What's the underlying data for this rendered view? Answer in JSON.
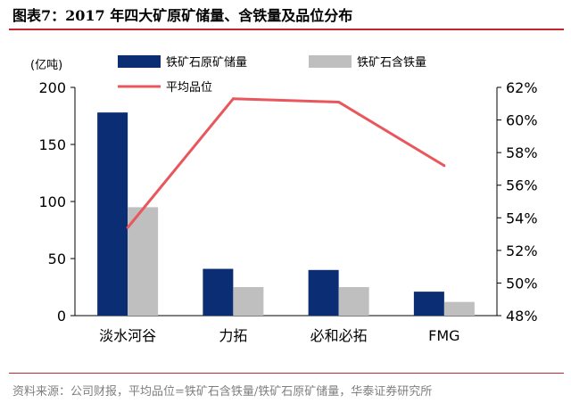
{
  "figure": {
    "title": "图表7：2017 年四大矿原矿储量、含铁量及品位分布",
    "source": "资料来源：公司财报，平均品位=铁矿石含铁量/铁矿石原矿储量，华泰证券研究所"
  },
  "colors": {
    "reserve": "#0b2d73",
    "iron": "#bfbfbf",
    "grade": "#e9575c",
    "rule": "#c0262d"
  },
  "chart_data": {
    "type": "bar",
    "categories": [
      "淡水河谷",
      "力拓",
      "必和必拓",
      "FMG"
    ],
    "series": [
      {
        "name": "铁矿石原矿储量",
        "type": "bar",
        "axis": "left",
        "values": [
          178,
          41,
          40,
          21
        ]
      },
      {
        "name": "铁矿石含铁量",
        "type": "bar",
        "axis": "left",
        "values": [
          95,
          25,
          25,
          12
        ]
      },
      {
        "name": "平均品位",
        "type": "line",
        "axis": "right",
        "values": [
          53.4,
          61.3,
          61.1,
          57.2
        ]
      }
    ],
    "y_left": {
      "unit_label": "(亿吨)",
      "range": [
        0,
        200
      ],
      "ticks": [
        "0",
        "50",
        "100",
        "150",
        "200"
      ]
    },
    "y_right": {
      "range": [
        48,
        62
      ],
      "ticks": [
        "48%",
        "50%",
        "52%",
        "54%",
        "56%",
        "58%",
        "60%",
        "62%"
      ]
    },
    "legend_position": "top",
    "grid": false
  }
}
